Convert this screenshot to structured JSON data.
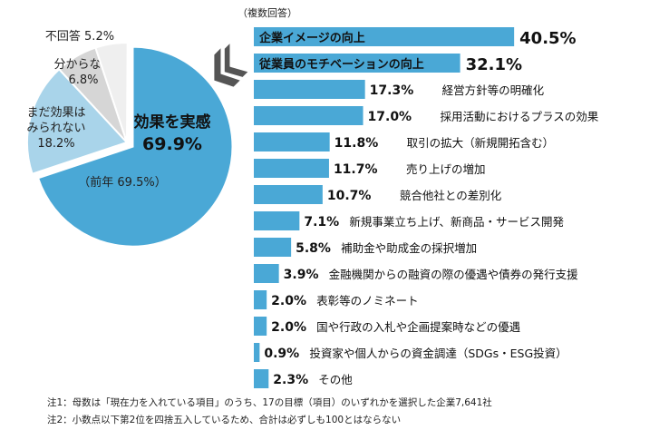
{
  "chart_data": [
    {
      "type": "pie",
      "slices": [
        {
          "label": "効果を実感",
          "value": 69.9,
          "color": "#4aa8d6",
          "sublabel": "（前年 69.5%）"
        },
        {
          "label": "まだ効果は\nみられない",
          "value": 18.2,
          "color": "#a9d4ea"
        },
        {
          "label": "分からない",
          "value": 6.8,
          "color": "#d6d6d6"
        },
        {
          "label": "不回答",
          "value": 5.2,
          "color": "#efefef"
        }
      ]
    },
    {
      "type": "bar",
      "orientation": "horizontal",
      "note": "（複数回答）",
      "categories": [
        "企業イメージの向上",
        "従業員のモチベーションの向上",
        "経営方針等の明確化",
        "採用活動におけるプラスの効果",
        "取引の拡大（新規開拓含む）",
        "売り上げの増加",
        "競合他社との差別化",
        "新規事業立ち上げ、新商品・サービス開発",
        "補助金や助成金の採択増加",
        "金融機関からの融資の際の優遇や債券の発行支援",
        "表彰等のノミネート",
        "国や行政の入札や企画提案時などの優遇",
        "投資家や個人からの資金調達（SDGs・ESG投資）",
        "その他"
      ],
      "values": [
        40.5,
        32.1,
        17.3,
        17.0,
        11.8,
        11.7,
        10.7,
        7.1,
        5.8,
        3.9,
        2.0,
        2.0,
        0.9,
        2.3
      ],
      "color": "#4aa8d6",
      "unit": "%"
    }
  ],
  "notes": [
    "注1：母数は「現在力を入れている項目」のうち、17の目標（項目）のいずれかを選択した企業7,641社",
    "注2：小数点以下第2位を四捨五入しているため、合計は必ずしも100とはならない"
  ]
}
